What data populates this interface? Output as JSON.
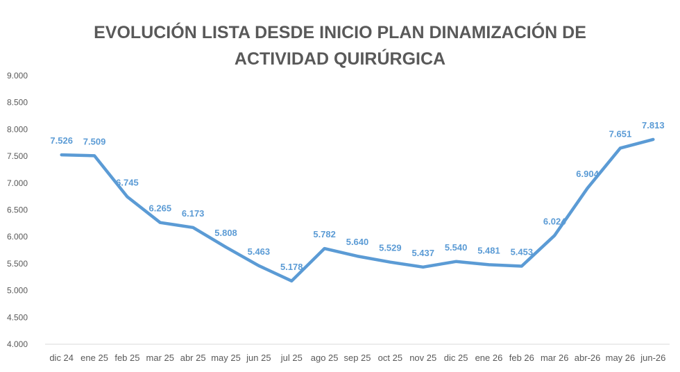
{
  "chart_data": {
    "type": "line",
    "title_line1": "EVOLUCIÓN LISTA DESDE INICIO PLAN DINAMIZACIÓN DE",
    "title_line2": "ACTIVIDAD QUIRÚRGICA",
    "xlabel": "",
    "ylabel": "",
    "ylim": [
      4000,
      9000
    ],
    "yticks": [
      4000,
      4500,
      5000,
      5500,
      6000,
      6500,
      7000,
      7500,
      8000,
      8500,
      9000
    ],
    "ytick_labels": [
      "4.000",
      "4.500",
      "5.000",
      "5.500",
      "6.000",
      "6.500",
      "7.000",
      "7.500",
      "8.000",
      "8.500",
      "9.000"
    ],
    "categories": [
      "dic 24",
      "ene 25",
      "feb 25",
      "mar 25",
      "abr 25",
      "may 25",
      "jun 25",
      "jul 25",
      "ago 25",
      "sep 25",
      "oct 25",
      "nov 25",
      "dic 25",
      "ene 26",
      "feb 26",
      "mar 26",
      "abr-26",
      "may 26",
      "jun-26"
    ],
    "values": [
      7526,
      7509,
      6745,
      6265,
      6173,
      5808,
      5463,
      5178,
      5782,
      5640,
      5529,
      5437,
      5540,
      5481,
      5453,
      6024,
      6904,
      7651,
      7813
    ],
    "data_labels": [
      "7.526",
      "7.509",
      "6.745",
      "6.265",
      "6.173",
      "5.808",
      "5.463",
      "5.178",
      "5.782",
      "5.640",
      "5.529",
      "5.437",
      "5.540",
      "5.481",
      "5.453",
      "6.024",
      "6.904",
      "7.651",
      "7.813"
    ],
    "line_color": "#5b9bd5",
    "grid": false,
    "legend": "none"
  }
}
